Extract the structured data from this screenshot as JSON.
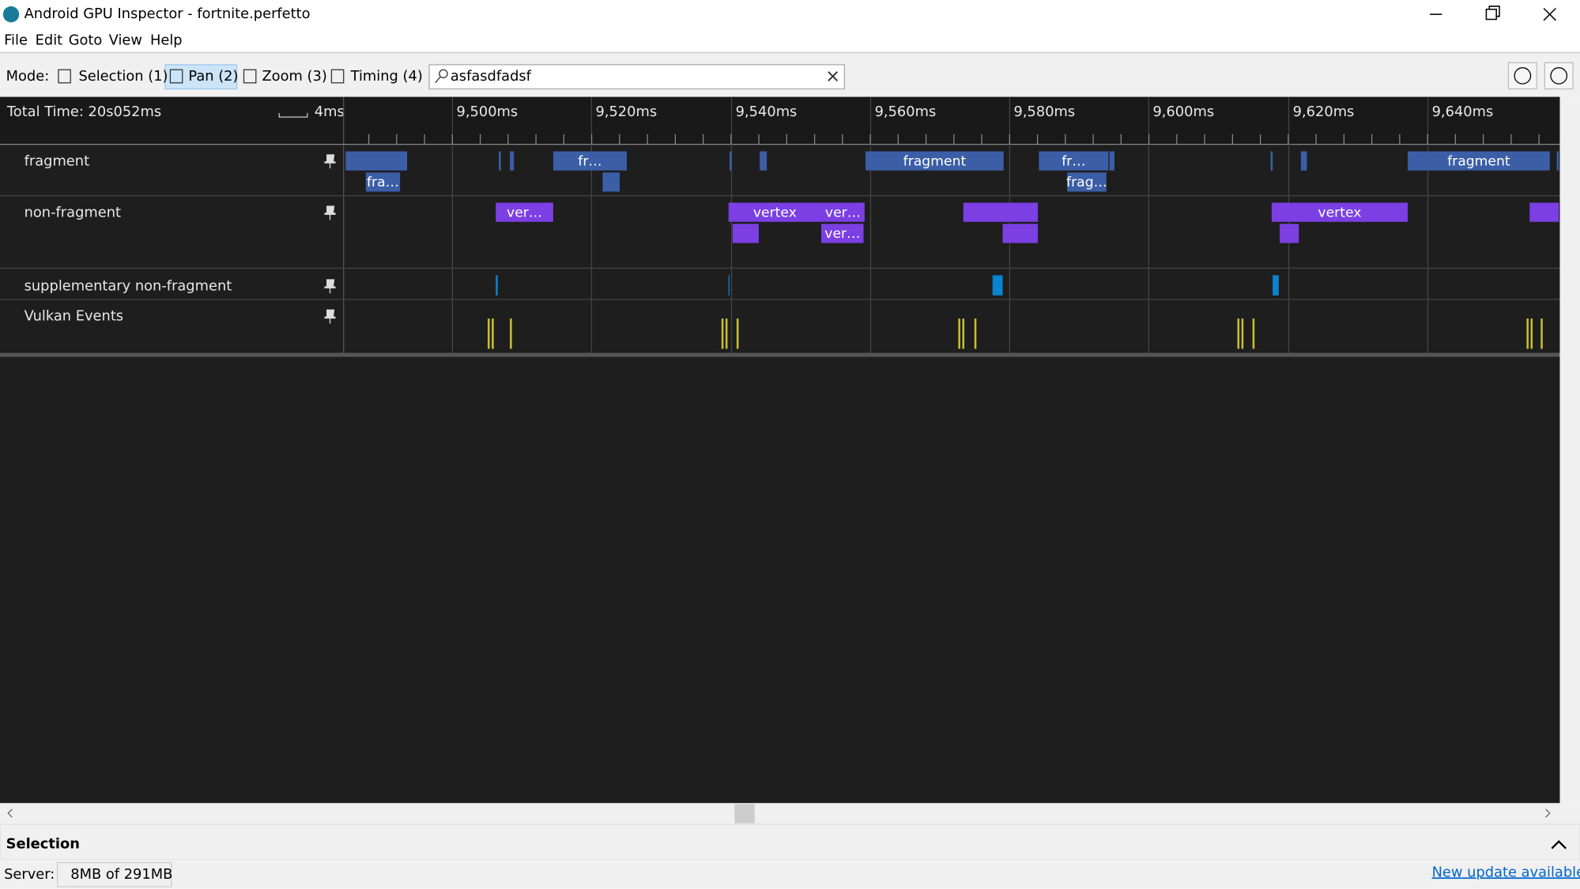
{
  "window": {
    "title": "Android GPU Inspector - fortnite.perfetto"
  },
  "menu": [
    "File",
    "Edit",
    "Goto",
    "View",
    "Help"
  ],
  "toolbar": {
    "mode_label": "Mode:",
    "modes": [
      "Selection (1)",
      "Pan (2)",
      "Zoom (3)",
      "Timing (4)"
    ],
    "search": "asfasdfadsf"
  },
  "timeline": {
    "total_time": "Total Time: 20s052ms",
    "scale": "4ms",
    "ticks": [
      "9,500ms",
      "9,520ms",
      "9,540ms",
      "9,560ms",
      "9,580ms",
      "9,600ms",
      "9,620ms",
      "9,640ms"
    ],
    "tracks": [
      {
        "name": "fragment",
        "slices": [
          "fra…",
          "fr…",
          "fragment",
          "fr…",
          "frag…",
          "fragment"
        ]
      },
      {
        "name": "non-fragment",
        "slices": [
          "ver…",
          "vertex",
          "ver…",
          "ver…",
          "vertex"
        ]
      },
      {
        "name": "supplementary non-fragment"
      },
      {
        "name": "Vulkan Events"
      }
    ]
  },
  "selection_panel": {
    "title": "Selection"
  },
  "status": {
    "server_label": "Server:",
    "memory": "8MB of 291MB",
    "update": "New update available"
  }
}
